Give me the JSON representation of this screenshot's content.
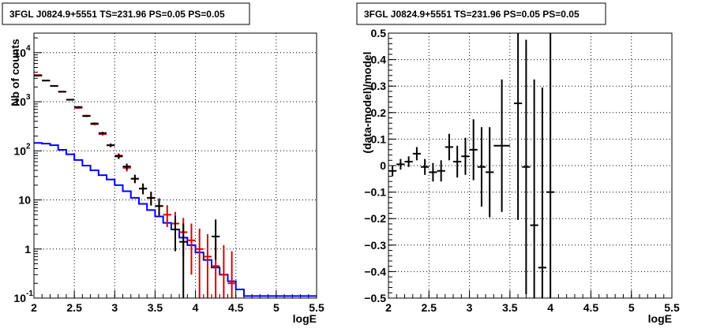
{
  "panels": {
    "left_title": "3FGL J0824.9+5551 TS=231.96 PS=0.05 PS=0.05",
    "right_title": "3FGL J0824.9+5551 TS=231.96 PS=0.05 PS=0.05"
  },
  "chart_data": [
    {
      "type": "line",
      "title": "3FGL J0824.9+5551 TS=231.96 PS=0.05 PS=0.05",
      "xlabel": "logE",
      "ylabel": "Nb of counts",
      "xlim": [
        2,
        5.5
      ],
      "ylim": [
        0.1,
        25000
      ],
      "yscale": "log",
      "grid": true,
      "x_ticks": [
        "2",
        "2.5",
        "3",
        "3.5",
        "4",
        "4.5",
        "5",
        "5.5"
      ],
      "y_ticks": [
        {
          "value": 0.1,
          "label": "10",
          "exp": "-1"
        },
        {
          "value": 1,
          "label": "1",
          "exp": ""
        },
        {
          "value": 10,
          "label": "10",
          "exp": ""
        },
        {
          "value": 100,
          "label": "10",
          "exp": "2"
        },
        {
          "value": 1000,
          "label": "10",
          "exp": "3"
        },
        {
          "value": 10000,
          "label": "10",
          "exp": "4"
        }
      ],
      "series": [
        {
          "color": "#0000ff",
          "style": "step",
          "bin_edges": [
            2.0,
            2.1,
            2.2,
            2.3,
            2.4,
            2.5,
            2.6,
            2.7,
            2.8,
            2.9,
            3.0,
            3.1,
            3.2,
            3.3,
            3.4,
            3.5,
            3.6,
            3.7,
            3.8,
            3.9,
            4.0,
            4.1,
            4.2,
            4.3,
            4.4,
            4.5,
            4.6,
            4.7,
            4.8,
            4.9,
            5.0,
            5.1,
            5.2,
            5.3,
            5.4,
            5.5
          ],
          "values": [
            145,
            140,
            130,
            105,
            85,
            65,
            50,
            40,
            32,
            26,
            20,
            15,
            11,
            8.3,
            6.2,
            4.6,
            3.4,
            2.5,
            1.7,
            1.2,
            0.85,
            0.6,
            0.42,
            0.3,
            0.22,
            0.15,
            0.11,
            0.11,
            0.11,
            0.11,
            0.11,
            0.11,
            0.11,
            0.11,
            0.11
          ]
        },
        {
          "color": "#dd0000",
          "style": "errorbar",
          "x": [
            2.05,
            2.15,
            2.25,
            2.35,
            2.45,
            2.55,
            2.65,
            2.75,
            2.85,
            2.95,
            3.05,
            3.15,
            3.25,
            3.35,
            3.45,
            3.55,
            3.65,
            3.75,
            3.85,
            3.95,
            4.05,
            4.15,
            4.25,
            4.35,
            4.45
          ],
          "y": [
            3500,
            2700,
            2100,
            1600,
            1100,
            750,
            520,
            350,
            220,
            130,
            80,
            45,
            27,
            17,
            11,
            7.5,
            5,
            3.3,
            2.2,
            1.5,
            1.0,
            0.7,
            0.45,
            0.3,
            0.2
          ],
          "err_low": [
            80,
            60,
            50,
            40,
            30,
            25,
            20,
            18,
            15,
            11,
            9,
            7,
            5,
            4,
            3.3,
            2.7,
            2.2,
            1.8,
            1.5,
            1.2,
            1.0,
            0.7,
            0.45,
            0.3,
            0.2
          ],
          "err_high": [
            80,
            60,
            50,
            40,
            30,
            25,
            20,
            18,
            15,
            11,
            9,
            7,
            5.5,
            4.5,
            3.7,
            3.2,
            2.8,
            2.4,
            2.1,
            1.8,
            1.6,
            1.3,
            1.1,
            0.9,
            0.7
          ]
        },
        {
          "color": "#000000",
          "style": "errorbar",
          "x": [
            2.05,
            2.15,
            2.25,
            2.35,
            2.45,
            2.55,
            2.65,
            2.75,
            2.85,
            2.95,
            3.05,
            3.15,
            3.25,
            3.35,
            3.45,
            3.55,
            3.75,
            3.85,
            4.25
          ],
          "y": [
            3400,
            2700,
            2100,
            1600,
            1100,
            780,
            510,
            360,
            230,
            130,
            77,
            48,
            27,
            17,
            11,
            7.5,
            2.5,
            1.4,
            1.8
          ],
          "err_low": [
            80,
            60,
            50,
            40,
            30,
            25,
            20,
            18,
            15,
            11,
            9,
            7,
            5,
            4,
            3.3,
            2.7,
            1.6,
            1.3,
            1.2
          ],
          "err_high": [
            80,
            60,
            50,
            40,
            30,
            25,
            20,
            18,
            15,
            11,
            9,
            7,
            5.5,
            4.5,
            3.7,
            3.2,
            2.2,
            1.9,
            2.2
          ]
        }
      ]
    },
    {
      "type": "scatter",
      "title": "3FGL J0824.9+5551 TS=231.96 PS=0.05 PS=0.05",
      "xlabel": "logE",
      "ylabel": "(data-model)/model",
      "xlim": [
        2,
        5.5
      ],
      "ylim": [
        -0.5,
        0.5
      ],
      "grid": true,
      "x_ticks": [
        "2",
        "2.5",
        "3",
        "3.5",
        "4",
        "4.5",
        "5",
        "5.5"
      ],
      "y_ticks": [
        "-0.5",
        "-0.4",
        "-0.3",
        "-0.2",
        "-0.1",
        "0",
        "0.1",
        "0.2",
        "0.3",
        "0.4",
        "0.5"
      ],
      "series": [
        {
          "color": "#000000",
          "style": "errorbar",
          "x": [
            2.05,
            2.15,
            2.25,
            2.35,
            2.45,
            2.55,
            2.65,
            2.75,
            2.85,
            2.95,
            3.05,
            3.15,
            3.25,
            3.4,
            3.6,
            3.7,
            3.8,
            3.9,
            4.0
          ],
          "xerr": [
            0.05,
            0.05,
            0.05,
            0.05,
            0.05,
            0.05,
            0.05,
            0.05,
            0.05,
            0.05,
            0.05,
            0.05,
            0.05,
            0.1,
            0.05,
            0.05,
            0.05,
            0.05,
            0.05
          ],
          "y": [
            -0.02,
            0.005,
            0.015,
            0.045,
            -0.005,
            -0.025,
            -0.02,
            0.07,
            0.015,
            0.035,
            0.06,
            -0.005,
            -0.025,
            0.075,
            0.235,
            -0.005,
            -0.225,
            -0.385,
            -0.1
          ],
          "yerr": [
            0.02,
            0.02,
            0.02,
            0.025,
            0.03,
            0.035,
            0.04,
            0.05,
            0.06,
            0.07,
            0.115,
            0.15,
            0.17,
            0.25,
            0.44,
            0.48,
            0.55,
            0.68,
            0.72
          ]
        }
      ]
    }
  ]
}
